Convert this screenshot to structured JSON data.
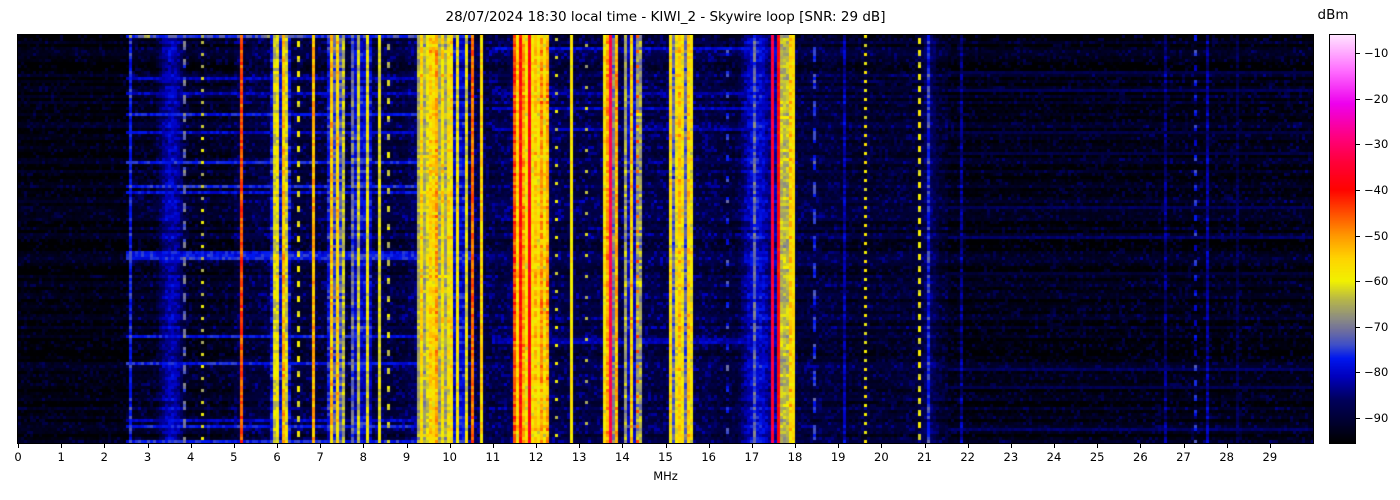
{
  "title": "28/07/2024 18:30 local time - KIWI_2 - Skywire loop [SNR: 29 dB]",
  "xaxis": {
    "label": "MHz",
    "tick_values": [
      0,
      1,
      2,
      3,
      4,
      5,
      6,
      7,
      8,
      9,
      10,
      11,
      12,
      13,
      14,
      15,
      16,
      17,
      18,
      19,
      20,
      21,
      22,
      23,
      24,
      25,
      26,
      27,
      28,
      29
    ],
    "tick_labels": [
      "0",
      "1",
      "2",
      "3",
      "4",
      "5",
      "6",
      "7",
      "8",
      "9",
      "10",
      "11",
      "12",
      "13",
      "14",
      "15",
      "16",
      "17",
      "18",
      "19",
      "20",
      "21",
      "22",
      "23",
      "24",
      "25",
      "26",
      "27",
      "28",
      "29"
    ]
  },
  "colorbar": {
    "title": "dBm",
    "tick_values": [
      -10,
      -20,
      -30,
      -40,
      -50,
      -60,
      -70,
      -80,
      -90
    ],
    "tick_labels": [
      "−10",
      "−20",
      "−30",
      "−40",
      "−50",
      "−60",
      "−70",
      "−80",
      "−90"
    ]
  },
  "chart_data": {
    "type": "heatmap",
    "title": "28/07/2024 18:30 local time - KIWI_2 - Skywire loop [SNR: 29 dB]",
    "xlabel": "MHz",
    "x_range_mhz": [
      0,
      30
    ],
    "y_axis": "time (waterfall rows, unlabeled)",
    "value_unit": "dBm",
    "value_range": [
      -95.5,
      -6
    ],
    "snr_db": 29,
    "colormap_stops": [
      [
        -95.5,
        "#000002"
      ],
      [
        -91,
        "#000030"
      ],
      [
        -86,
        "#00005e"
      ],
      [
        -81,
        "#0000be"
      ],
      [
        -77,
        "#0018f0"
      ],
      [
        -74,
        "#4050c8"
      ],
      [
        -71,
        "#6e6ea0"
      ],
      [
        -68,
        "#8f8f80"
      ],
      [
        -64,
        "#b8b848"
      ],
      [
        -60,
        "#f2f200"
      ],
      [
        -55,
        "#ffd400"
      ],
      [
        -50,
        "#ff9800"
      ],
      [
        -45,
        "#ff4e00"
      ],
      [
        -40,
        "#ff0400"
      ],
      [
        -34,
        "#ff0038"
      ],
      [
        -28,
        "#ff0084"
      ],
      [
        -21,
        "#ee00ee"
      ],
      [
        -14,
        "#ff6aff"
      ],
      [
        -9,
        "#ffb6ff"
      ],
      [
        -6,
        "#ffe2ff"
      ]
    ],
    "noise_regions": [
      {
        "f0": 0.0,
        "f1": 2.55,
        "floor": -94.5,
        "p": 0.3,
        "smax": -88
      },
      {
        "f0": 2.55,
        "f1": 5.0,
        "floor": -93,
        "p": 0.45,
        "smax": -85
      },
      {
        "f0": 5.0,
        "f1": 9.0,
        "floor": -91,
        "p": 0.55,
        "smax": -83
      },
      {
        "f0": 9.0,
        "f1": 12.5,
        "floor": -90,
        "p": 0.65,
        "smax": -82
      },
      {
        "f0": 12.5,
        "f1": 16.2,
        "floor": -90,
        "p": 0.6,
        "smax": -82
      },
      {
        "f0": 16.2,
        "f1": 19.0,
        "floor": -91,
        "p": 0.55,
        "smax": -84
      },
      {
        "f0": 19.0,
        "f1": 21.5,
        "floor": -92,
        "p": 0.5,
        "smax": -85
      },
      {
        "f0": 21.5,
        "f1": 25.5,
        "floor": -94,
        "p": 0.35,
        "smax": -87
      },
      {
        "f0": 25.5,
        "f1": 30.0,
        "floor": -94,
        "p": 0.35,
        "smax": -86
      }
    ],
    "glows": [
      {
        "fc": 3.55,
        "sigma": 0.28,
        "peak": -81
      },
      {
        "fc": 9.7,
        "sigma": 0.9,
        "peak": -86
      },
      {
        "fc": 11.85,
        "sigma": 0.6,
        "peak": -84
      },
      {
        "fc": 17.1,
        "sigma": 0.35,
        "peak": -79
      },
      {
        "fc": 17.55,
        "sigma": 0.3,
        "peak": -82
      },
      {
        "fc": 21.1,
        "sigma": 0.25,
        "peak": -86
      }
    ],
    "bands": [
      {
        "t": "carrier",
        "f": 2.602,
        "w": 0.025,
        "lvl": -77,
        "fl": 3
      },
      {
        "t": "dashed",
        "f": 3.87,
        "w": 0.03,
        "lvl": -71,
        "on": 3,
        "off": 3
      },
      {
        "t": "dashed",
        "f": 4.25,
        "w": 0.02,
        "lvl": -63,
        "on": 1,
        "off": 3
      },
      {
        "t": "carrier",
        "f": 4.655,
        "w": 0.02,
        "lvl": -62,
        "fl": 3
      },
      {
        "t": "carrier",
        "f": 5.155,
        "w": 0.035,
        "lvl": -45,
        "fl": 4
      },
      {
        "t": "cluster",
        "f0": 5.85,
        "f1": 6.3,
        "min": -78,
        "max": -52,
        "dens": 0.55,
        "amb": -80
      },
      {
        "t": "dashed",
        "f": 6.47,
        "w": 0.02,
        "lvl": -60,
        "on": 2,
        "off": 3
      },
      {
        "t": "carrier",
        "f": 6.82,
        "w": 0.03,
        "lvl": -52,
        "fl": 4
      },
      {
        "t": "cluster",
        "f0": 7.15,
        "f1": 7.6,
        "min": -74,
        "max": -53,
        "dens": 0.6,
        "amb": -78
      },
      {
        "t": "cluster",
        "f0": 7.7,
        "f1": 8.2,
        "min": -78,
        "max": -57,
        "dens": 0.45,
        "amb": -80
      },
      {
        "t": "carrier",
        "f": 8.36,
        "w": 0.02,
        "lvl": -61,
        "fl": 3
      },
      {
        "t": "dashed",
        "f": 8.57,
        "w": 0.02,
        "lvl": -63,
        "on": 2,
        "off": 4
      },
      {
        "t": "cluster",
        "f0": 9.25,
        "f1": 10.05,
        "min": -68,
        "max": -48,
        "dens": 0.75,
        "amb": -66
      },
      {
        "t": "carrier",
        "f": 9.58,
        "w": 0.03,
        "lvl": -45,
        "fl": 3
      },
      {
        "t": "cluster",
        "f0": 10.05,
        "f1": 10.45,
        "min": -72,
        "max": -57,
        "dens": 0.4,
        "amb": -80
      },
      {
        "t": "carrier",
        "f": 10.53,
        "w": 0.025,
        "lvl": -47,
        "fl": 4
      },
      {
        "t": "carrier",
        "f": 10.72,
        "w": 0.02,
        "lvl": -56,
        "fl": 4
      },
      {
        "t": "cluster",
        "f0": 11.45,
        "f1": 12.3,
        "min": -60,
        "max": -44,
        "dens": 0.8,
        "amb": -58
      },
      {
        "t": "carrier",
        "f": 11.63,
        "w": 0.03,
        "lvl": -40,
        "fl": 3
      },
      {
        "t": "carrier",
        "f": 11.86,
        "w": 0.035,
        "lvl": -38,
        "fl": 3
      },
      {
        "t": "carrier",
        "f": 12.08,
        "w": 0.025,
        "lvl": -42,
        "fl": 4
      },
      {
        "t": "dashed",
        "f": 12.47,
        "w": 0.02,
        "lvl": -62,
        "on": 1,
        "off": 5
      },
      {
        "t": "carrier",
        "f": 12.84,
        "w": 0.02,
        "lvl": -58,
        "fl": 3
      },
      {
        "t": "dashed",
        "f": 13.18,
        "w": 0.02,
        "lvl": -64,
        "on": 1,
        "off": 6
      },
      {
        "t": "cluster",
        "f0": 13.55,
        "f1": 13.9,
        "min": -62,
        "max": -50,
        "dens": 0.5,
        "amb": -70
      },
      {
        "t": "carrier",
        "f": 13.705,
        "w": 0.03,
        "lvl": -33,
        "fl": 2
      },
      {
        "t": "cluster",
        "f0": 14.0,
        "f1": 14.45,
        "min": -68,
        "max": -52,
        "dens": 0.45,
        "amb": -80
      },
      {
        "t": "dashed",
        "f": 14.31,
        "w": 0.02,
        "lvl": -46,
        "on": 1,
        "off": 4
      },
      {
        "t": "cluster",
        "f0": 15.1,
        "f1": 15.6,
        "min": -64,
        "max": -52,
        "dens": 0.65,
        "amb": -72
      },
      {
        "t": "dashed",
        "f": 16.25,
        "w": 0.04,
        "lvl": -70,
        "on": 4,
        "off": 3
      },
      {
        "t": "dashed",
        "f": 16.45,
        "w": 0.02,
        "lvl": -76,
        "on": 2,
        "off": 5
      },
      {
        "t": "carrier",
        "f": 17.05,
        "w": 0.05,
        "lvl": -72,
        "fl": 4
      },
      {
        "t": "carrier",
        "f": 17.48,
        "w": 0.03,
        "lvl": -34,
        "fl": 2
      },
      {
        "t": "carrier",
        "f": 17.585,
        "w": 0.025,
        "lvl": -39,
        "fl": 3
      },
      {
        "t": "cluster",
        "f0": 17.62,
        "f1": 17.95,
        "min": -58,
        "max": -48,
        "dens": 0.7,
        "amb": -64
      },
      {
        "t": "carrier",
        "f": 17.96,
        "w": 0.02,
        "lvl": -57,
        "fl": 3
      },
      {
        "t": "dashed",
        "f": 18.43,
        "w": 0.05,
        "lvl": -75,
        "on": 5,
        "off": 4
      },
      {
        "t": "carrier",
        "f": 19.15,
        "w": 0.02,
        "lvl": -82,
        "fl": 3
      },
      {
        "t": "dashed",
        "f": 19.6,
        "w": 0.02,
        "lvl": -59,
        "on": 1,
        "off": 2
      },
      {
        "t": "dashed",
        "f": 19.93,
        "w": 0.025,
        "lvl": -67,
        "on": 4,
        "off": 3
      },
      {
        "t": "dashed",
        "f": 20.87,
        "w": 0.025,
        "lvl": -60,
        "on": 2,
        "off": 2
      },
      {
        "t": "carrier",
        "f": 21.08,
        "w": 0.02,
        "lvl": -77,
        "fl": 4
      },
      {
        "t": "carrier",
        "f": 21.25,
        "w": 0.02,
        "lvl": -80,
        "fl": 4
      },
      {
        "t": "carrier",
        "f": 21.87,
        "w": 0.02,
        "lvl": -84,
        "fl": 4
      },
      {
        "t": "carrier",
        "f": 22.85,
        "w": 0.02,
        "lvl": -88,
        "fl": 3
      },
      {
        "t": "carrier",
        "f": 24.72,
        "w": 0.02,
        "lvl": -85,
        "fl": 4
      },
      {
        "t": "carrier",
        "f": 26.55,
        "w": 0.02,
        "lvl": -85,
        "fl": 4
      },
      {
        "t": "dashed",
        "f": 27.25,
        "w": 0.03,
        "lvl": -78,
        "on": 2,
        "off": 3
      },
      {
        "t": "carrier",
        "f": 27.55,
        "w": 0.02,
        "lvl": -83,
        "fl": 3
      },
      {
        "t": "carrier",
        "f": 28.2,
        "w": 0.02,
        "lvl": -88,
        "fl": 3
      }
    ],
    "bursts": [
      {
        "p": 0.1,
        "seed": 3.3,
        "f0": 2.5,
        "f1": 10.5,
        "lvl": -82,
        "spread": 6
      },
      {
        "p": 0.06,
        "seed": 5.1,
        "f0": 11.0,
        "f1": 18.0,
        "lvl": -83,
        "spread": 5
      },
      {
        "p": 0.08,
        "seed": 7.7,
        "f0": 21.5,
        "f1": 30.0,
        "lvl": -89,
        "spread": 3
      }
    ],
    "top_row": {
      "f0": 2.5,
      "f1": 10.5,
      "lvl": -76,
      "spread": 9
    }
  }
}
